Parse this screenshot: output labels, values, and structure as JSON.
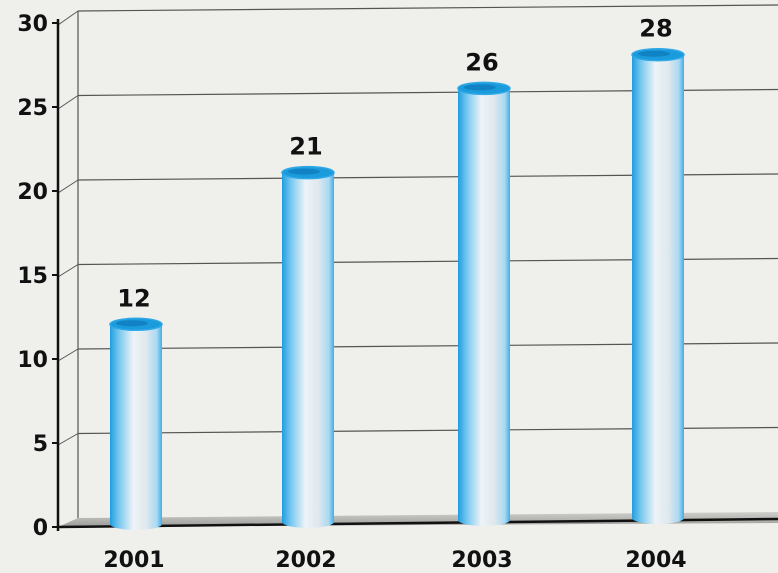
{
  "chart_data": {
    "type": "bar",
    "style": "3d-cylinder",
    "categories": [
      "2001",
      "2002",
      "2003",
      "2004"
    ],
    "values": [
      12,
      21,
      26,
      28
    ],
    "ylim": [
      0,
      30
    ],
    "yticks": [
      0,
      5,
      10,
      15,
      20,
      25,
      30
    ],
    "grid": true,
    "data_labels": true,
    "title": "",
    "xlabel": "",
    "ylabel": "",
    "colors": {
      "bar_top": "#1a9bdc",
      "bar_edge": "#2fa8e8",
      "bar_highlight": "#f4f7f9",
      "grid": "#555555",
      "background": "#efefec"
    }
  }
}
